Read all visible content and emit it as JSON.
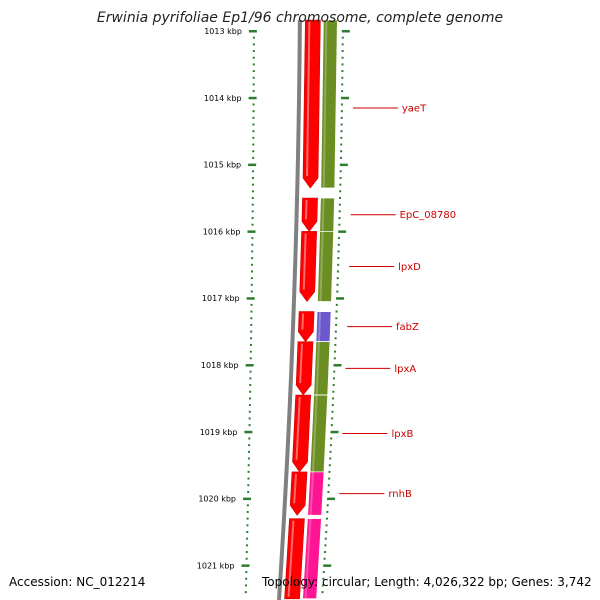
{
  "title": "Erwinia pyrifoliae Ep1/96 chromosome, complete genome",
  "accession": "Accession: NC_012214",
  "topology": "Topology: circular; Length: 4,026,322 bp; Genes: 3,742",
  "colors": {
    "cds": "#ff0000",
    "cog_olive": "#6b8e23",
    "cog_purple": "#6a5acd",
    "cog_pink": "#ff1493",
    "backbone": "#808080",
    "tick": "#2e7d2e",
    "label": "#cc0000"
  },
  "ruler": {
    "unit": "kbp",
    "labels": [
      "1013 kbp",
      "1014 kbp",
      "1015 kbp",
      "1016 kbp",
      "1017 kbp",
      "1018 kbp",
      "1019 kbp",
      "1020 kbp",
      "1021 kbp"
    ]
  },
  "genes": [
    {
      "name": "yaeT",
      "start_kbp": 1012.6,
      "end_kbp": 1015.35,
      "strand": "-",
      "cog": "olive"
    },
    {
      "name": "EpC_08780",
      "start_kbp": 1015.5,
      "end_kbp": 1016.0,
      "strand": "-",
      "cog": "olive"
    },
    {
      "name": "lpxD",
      "start_kbp": 1016.0,
      "end_kbp": 1017.05,
      "strand": "-",
      "cog": "olive"
    },
    {
      "name": "fabZ",
      "start_kbp": 1017.2,
      "end_kbp": 1017.65,
      "strand": "-",
      "cog": "purple"
    },
    {
      "name": "lpxA",
      "start_kbp": 1017.65,
      "end_kbp": 1018.45,
      "strand": "-",
      "cog": "olive"
    },
    {
      "name": "lpxB",
      "start_kbp": 1018.45,
      "end_kbp": 1019.6,
      "strand": "-",
      "cog": "olive"
    },
    {
      "name": "rnhB",
      "start_kbp": 1019.6,
      "end_kbp": 1020.25,
      "strand": "-",
      "cog": "pink"
    },
    {
      "name": "",
      "start_kbp": 1020.3,
      "end_kbp": 1021.5,
      "strand": "-",
      "cog": "pink"
    }
  ]
}
